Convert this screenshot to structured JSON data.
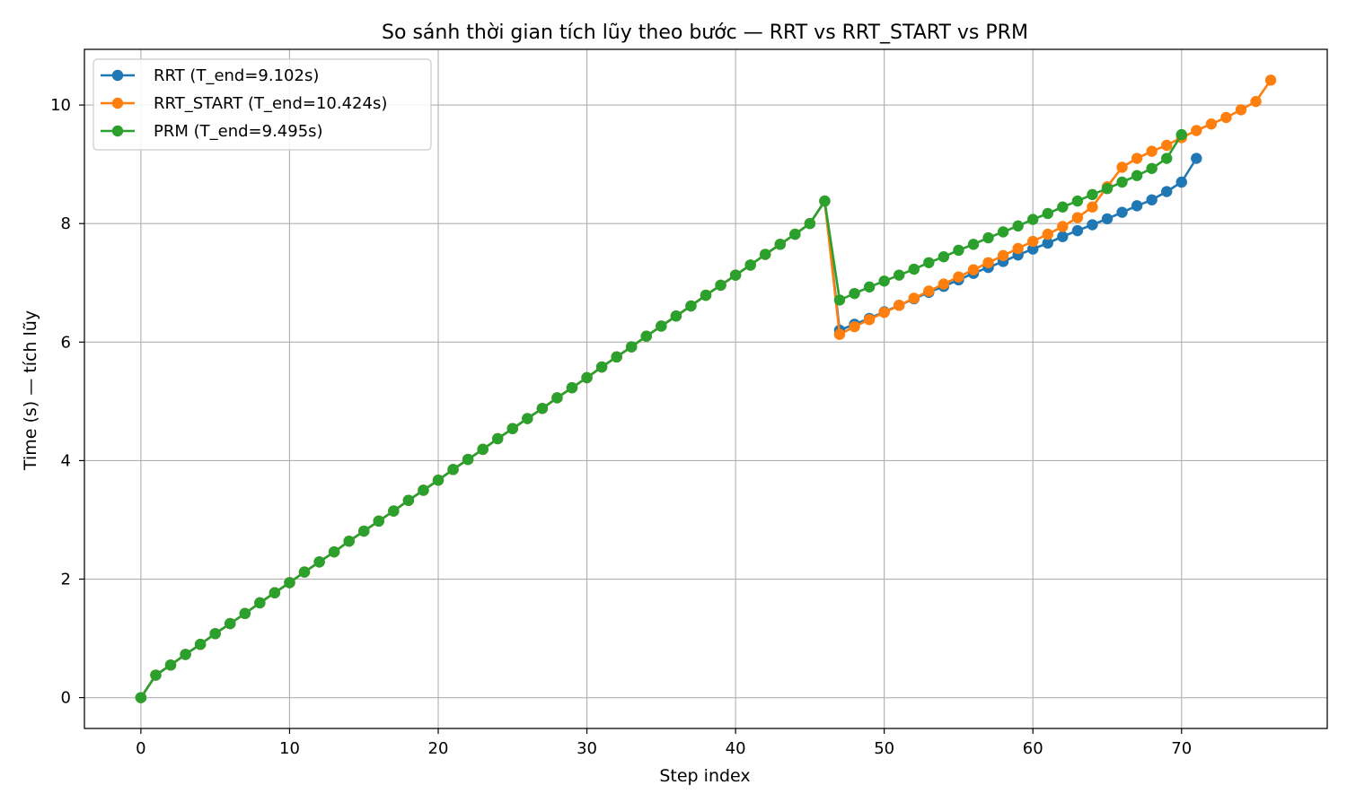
{
  "chart_data": {
    "type": "line",
    "title": "So sánh thời gian tích lũy theo bước — RRT vs RRT_START vs PRM",
    "xlabel": "Step index",
    "ylabel": "Time (s) — tích lũy",
    "xlim": [
      -3.8,
      79.8
    ],
    "ylim": [
      -0.52,
      10.94
    ],
    "xticks": [
      0,
      10,
      20,
      30,
      40,
      50,
      60,
      70
    ],
    "yticks": [
      0,
      2,
      4,
      6,
      8,
      10
    ],
    "grid": true,
    "legend_position": "top-left",
    "series": [
      {
        "name": "RRT (T_end=9.102s)",
        "color": "#1f77b4",
        "x": [
          0,
          1,
          2,
          3,
          4,
          5,
          6,
          7,
          8,
          9,
          10,
          11,
          12,
          13,
          14,
          15,
          16,
          17,
          18,
          19,
          20,
          21,
          22,
          23,
          24,
          25,
          26,
          27,
          28,
          29,
          30,
          31,
          32,
          33,
          34,
          35,
          36,
          37,
          38,
          39,
          40,
          41,
          42,
          43,
          44,
          45,
          46,
          47,
          48,
          49,
          50,
          51,
          52,
          53,
          54,
          55,
          56,
          57,
          58,
          59,
          60,
          61,
          62,
          63,
          64,
          65,
          66,
          67,
          68,
          69,
          70,
          71
        ],
        "y": [
          0.0,
          0.38,
          0.55,
          0.73,
          0.9,
          1.08,
          1.25,
          1.42,
          1.6,
          1.77,
          1.94,
          2.12,
          2.29,
          2.46,
          2.64,
          2.81,
          2.98,
          3.15,
          3.33,
          3.5,
          3.67,
          3.85,
          4.02,
          4.19,
          4.37,
          4.54,
          4.71,
          4.88,
          5.06,
          5.23,
          5.4,
          5.58,
          5.75,
          5.92,
          6.1,
          6.27,
          6.44,
          6.61,
          6.79,
          6.96,
          7.13,
          7.3,
          7.48,
          7.65,
          7.82,
          8.0,
          8.38,
          6.2,
          6.3,
          6.4,
          6.51,
          6.62,
          6.73,
          6.84,
          6.94,
          7.05,
          7.16,
          7.26,
          7.36,
          7.47,
          7.57,
          7.67,
          7.78,
          7.88,
          7.98,
          8.08,
          8.19,
          8.3,
          8.4,
          8.54,
          8.7,
          9.1
        ]
      },
      {
        "name": "RRT_START (T_end=10.424s)",
        "color": "#ff7f0e",
        "x": [
          0,
          1,
          2,
          3,
          4,
          5,
          6,
          7,
          8,
          9,
          10,
          11,
          12,
          13,
          14,
          15,
          16,
          17,
          18,
          19,
          20,
          21,
          22,
          23,
          24,
          25,
          26,
          27,
          28,
          29,
          30,
          31,
          32,
          33,
          34,
          35,
          36,
          37,
          38,
          39,
          40,
          41,
          42,
          43,
          44,
          45,
          46,
          47,
          48,
          49,
          50,
          51,
          52,
          53,
          54,
          55,
          56,
          57,
          58,
          59,
          60,
          61,
          62,
          63,
          64,
          65,
          66,
          67,
          68,
          69,
          70,
          71,
          72,
          73,
          74,
          75,
          76
        ],
        "y": [
          0.0,
          0.38,
          0.55,
          0.73,
          0.9,
          1.08,
          1.25,
          1.42,
          1.6,
          1.77,
          1.94,
          2.12,
          2.29,
          2.46,
          2.64,
          2.81,
          2.98,
          3.15,
          3.33,
          3.5,
          3.67,
          3.85,
          4.02,
          4.19,
          4.37,
          4.54,
          4.71,
          4.88,
          5.06,
          5.23,
          5.4,
          5.58,
          5.75,
          5.92,
          6.1,
          6.27,
          6.44,
          6.61,
          6.79,
          6.96,
          7.13,
          7.3,
          7.48,
          7.65,
          7.82,
          8.0,
          8.38,
          6.13,
          6.26,
          6.38,
          6.5,
          6.62,
          6.74,
          6.86,
          6.98,
          7.1,
          7.22,
          7.34,
          7.46,
          7.58,
          7.7,
          7.82,
          7.95,
          8.1,
          8.28,
          8.62,
          8.95,
          9.1,
          9.22,
          9.32,
          9.45,
          9.57,
          9.68,
          9.79,
          9.92,
          10.06,
          10.42
        ]
      },
      {
        "name": "PRM (T_end=9.495s)",
        "color": "#2ca02c",
        "x": [
          0,
          1,
          2,
          3,
          4,
          5,
          6,
          7,
          8,
          9,
          10,
          11,
          12,
          13,
          14,
          15,
          16,
          17,
          18,
          19,
          20,
          21,
          22,
          23,
          24,
          25,
          26,
          27,
          28,
          29,
          30,
          31,
          32,
          33,
          34,
          35,
          36,
          37,
          38,
          39,
          40,
          41,
          42,
          43,
          44,
          45,
          46,
          47,
          48,
          49,
          50,
          51,
          52,
          53,
          54,
          55,
          56,
          57,
          58,
          59,
          60,
          61,
          62,
          63,
          64,
          65,
          66,
          67,
          68,
          69,
          70
        ],
        "y": [
          0.0,
          0.38,
          0.55,
          0.73,
          0.9,
          1.08,
          1.25,
          1.42,
          1.6,
          1.77,
          1.94,
          2.12,
          2.29,
          2.46,
          2.64,
          2.81,
          2.98,
          3.15,
          3.33,
          3.5,
          3.67,
          3.85,
          4.02,
          4.19,
          4.37,
          4.54,
          4.71,
          4.88,
          5.06,
          5.23,
          5.4,
          5.58,
          5.75,
          5.92,
          6.1,
          6.27,
          6.44,
          6.61,
          6.79,
          6.96,
          7.13,
          7.3,
          7.48,
          7.65,
          7.82,
          8.0,
          8.38,
          6.71,
          6.82,
          6.93,
          7.03,
          7.13,
          7.23,
          7.34,
          7.44,
          7.55,
          7.65,
          7.76,
          7.86,
          7.96,
          8.07,
          8.17,
          8.28,
          8.38,
          8.49,
          8.59,
          8.7,
          8.81,
          8.93,
          9.1,
          9.5
        ]
      }
    ]
  }
}
